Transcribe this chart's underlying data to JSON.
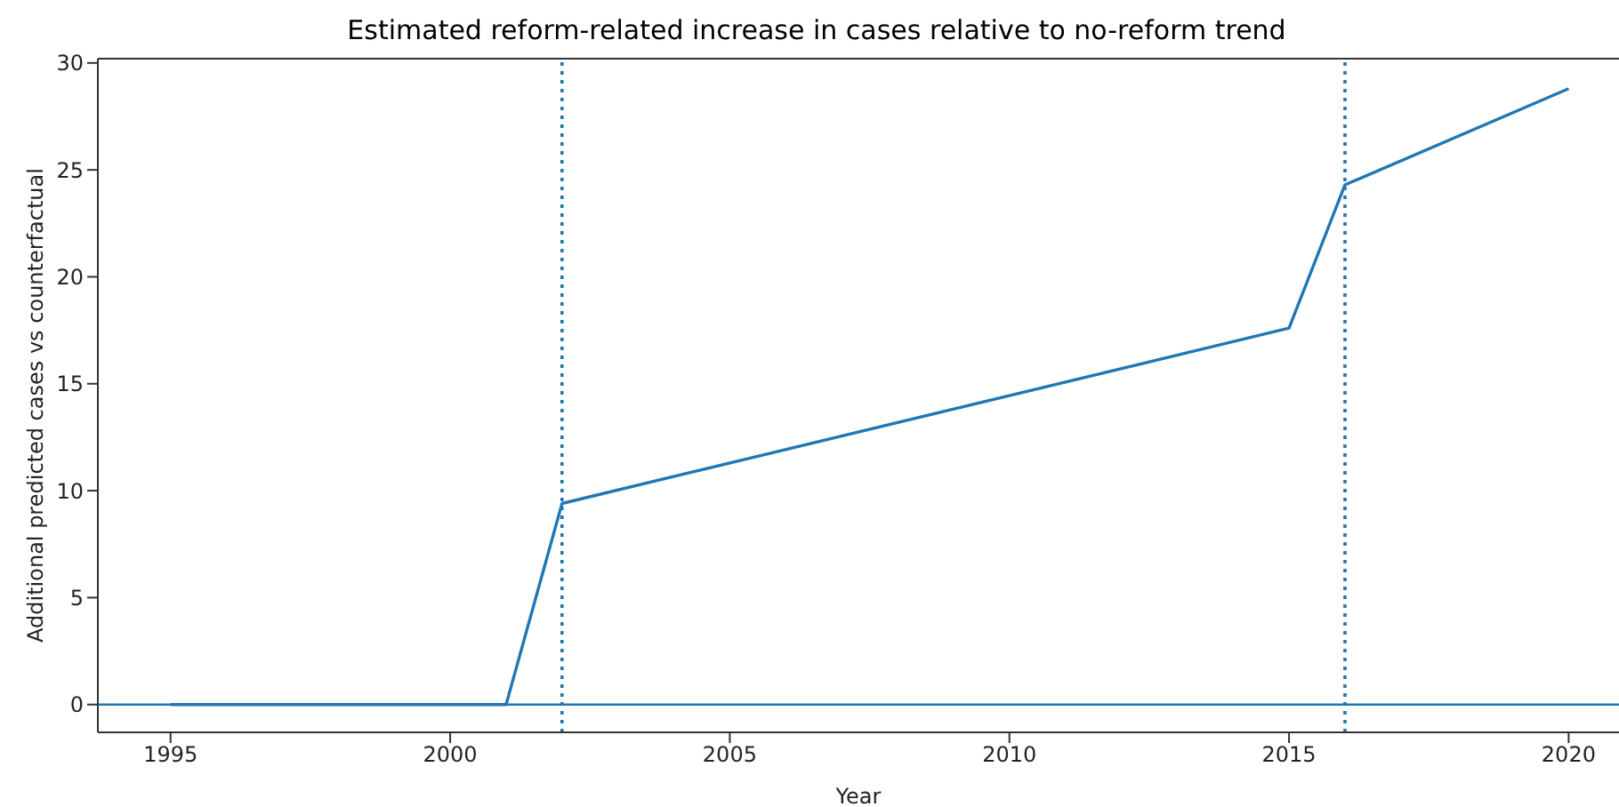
{
  "chart_data": {
    "type": "line",
    "title": "Estimated reform-related increase in cases relative to no-reform trend",
    "xlabel": "Year",
    "ylabel": "Additional predicted cases vs counterfactual",
    "x": [
      1995,
      2001,
      2002,
      2015,
      2016,
      2020
    ],
    "series": [
      {
        "color": "#1f77b4",
        "values": [
          0,
          0,
          9.4,
          17.6,
          24.3,
          28.8
        ]
      }
    ],
    "xlim": [
      1993.7,
      2020.9
    ],
    "xticks": [
      1995,
      2000,
      2005,
      2010,
      2015,
      2020
    ],
    "ylim": [
      -1.3,
      30.2
    ],
    "yticks": [
      0,
      5,
      10,
      15,
      20,
      25,
      30
    ],
    "ref_lines": [
      {
        "axis": "x",
        "value": 2002,
        "color": "#1f77b4",
        "line_style": "dotted"
      },
      {
        "axis": "x",
        "value": 2016,
        "color": "#1f77b4",
        "line_style": "dotted"
      },
      {
        "axis": "y",
        "value": 0,
        "color": "#1f77b4",
        "line_style": "solid"
      }
    ],
    "grid": false,
    "legend": false,
    "marker": "none",
    "line_style": "solid"
  }
}
